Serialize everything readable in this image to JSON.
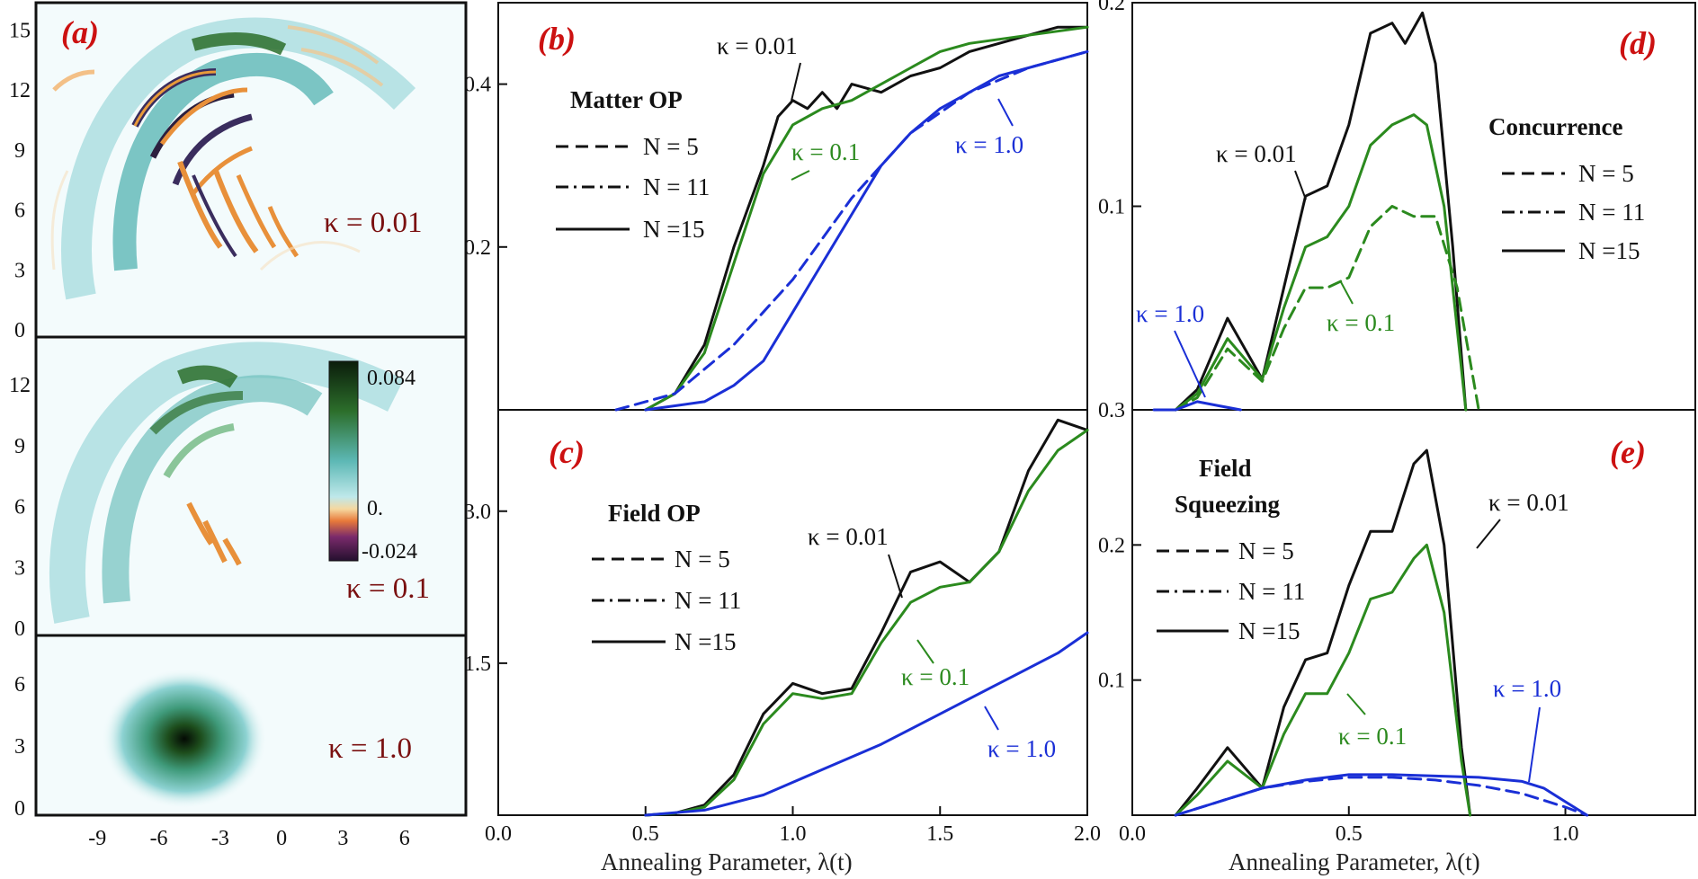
{
  "chart_data": [
    {
      "panel": "(a)",
      "type": "heatmap",
      "xlabel": "",
      "x_ticks": [
        "-9",
        "-6",
        "-3",
        "0",
        "3",
        "6"
      ],
      "colorbar": {
        "max": "0.084",
        "mid": "0.",
        "min": "-0.024"
      },
      "subpanels": [
        {
          "label": "κ = 0.01",
          "y_ticks": [
            "0",
            "3",
            "6",
            "9",
            "12",
            "15"
          ]
        },
        {
          "label": "κ = 0.1",
          "y_ticks": [
            "0",
            "3",
            "6",
            "9",
            "12"
          ]
        },
        {
          "label": "κ = 1.0",
          "y_ticks": [
            "0",
            "3",
            "6"
          ]
        }
      ]
    },
    {
      "panel": "(b)",
      "type": "line",
      "title": "Matter OP",
      "xlim": [
        0.0,
        2.0
      ],
      "ylim": [
        0.0,
        0.5
      ],
      "y_ticks": [
        "0.2",
        "0.4"
      ],
      "legend": [
        "N = 5",
        "N = 11",
        "N =15"
      ],
      "annotations": [
        "κ = 0.01",
        "κ = 0.1",
        "κ = 1.0"
      ],
      "series": [
        {
          "kappa": "0.01",
          "N": 15,
          "style": "solid",
          "color": "#111111",
          "x": [
            0.5,
            0.6,
            0.7,
            0.8,
            0.9,
            0.95,
            1.0,
            1.05,
            1.1,
            1.15,
            1.2,
            1.3,
            1.4,
            1.5,
            1.6,
            1.7,
            1.8,
            1.9,
            2.0
          ],
          "y": [
            0.0,
            0.02,
            0.08,
            0.2,
            0.3,
            0.36,
            0.38,
            0.37,
            0.39,
            0.37,
            0.4,
            0.39,
            0.41,
            0.42,
            0.44,
            0.45,
            0.46,
            0.47,
            0.47
          ]
        },
        {
          "kappa": "0.1",
          "N": 15,
          "style": "solid",
          "color": "#2b8a1e",
          "x": [
            0.5,
            0.6,
            0.7,
            0.8,
            0.9,
            1.0,
            1.1,
            1.2,
            1.3,
            1.4,
            1.5,
            1.6,
            1.8,
            2.0
          ],
          "y": [
            0.0,
            0.02,
            0.07,
            0.18,
            0.29,
            0.35,
            0.37,
            0.38,
            0.4,
            0.42,
            0.44,
            0.45,
            0.46,
            0.47
          ]
        },
        {
          "kappa": "1.0",
          "N": 15,
          "style": "solid",
          "color": "#1a2fd6",
          "x": [
            0.5,
            0.6,
            0.7,
            0.8,
            0.9,
            1.0,
            1.1,
            1.2,
            1.3,
            1.4,
            1.5,
            1.6,
            1.7,
            1.8,
            1.9,
            2.0
          ],
          "y": [
            0.0,
            0.005,
            0.01,
            0.03,
            0.06,
            0.12,
            0.18,
            0.24,
            0.3,
            0.34,
            0.37,
            0.39,
            0.41,
            0.42,
            0.43,
            0.44
          ]
        },
        {
          "kappa": "1.0",
          "N": 5,
          "style": "dashed",
          "color": "#1a2fd6",
          "x": [
            0.4,
            0.6,
            0.8,
            1.0,
            1.2,
            1.4,
            1.6,
            1.8,
            2.0
          ],
          "y": [
            0.0,
            0.02,
            0.08,
            0.16,
            0.26,
            0.34,
            0.39,
            0.42,
            0.44
          ]
        }
      ]
    },
    {
      "panel": "(c)",
      "type": "line",
      "title": "Field OP",
      "xlim": [
        0.0,
        2.0
      ],
      "ylim": [
        0.0,
        4.0
      ],
      "x_ticks": [
        "0.0",
        "0.5",
        "1.0",
        "1.5",
        "2.0"
      ],
      "y_ticks": [
        "1.5",
        "3.0"
      ],
      "xlabel": "Annealing Parameter, λ(t)",
      "legend": [
        "N = 5",
        "N = 11",
        "N =15"
      ],
      "annotations": [
        "κ = 0.01",
        "κ = 0.1",
        "κ = 1.0"
      ],
      "series": [
        {
          "kappa": "0.01",
          "N": 15,
          "style": "solid",
          "color": "#111111",
          "x": [
            0.5,
            0.6,
            0.7,
            0.8,
            0.9,
            1.0,
            1.1,
            1.2,
            1.3,
            1.4,
            1.5,
            1.6,
            1.7,
            1.8,
            1.9,
            2.0
          ],
          "y": [
            0.0,
            0.02,
            0.1,
            0.4,
            1.0,
            1.3,
            1.2,
            1.25,
            1.8,
            2.4,
            2.5,
            2.3,
            2.6,
            3.4,
            3.9,
            3.8
          ]
        },
        {
          "kappa": "0.1",
          "N": 15,
          "style": "solid",
          "color": "#2b8a1e",
          "x": [
            0.5,
            0.6,
            0.7,
            0.8,
            0.9,
            1.0,
            1.1,
            1.2,
            1.3,
            1.4,
            1.5,
            1.6,
            1.7,
            1.8,
            1.9,
            2.0
          ],
          "y": [
            0.0,
            0.02,
            0.08,
            0.35,
            0.9,
            1.2,
            1.15,
            1.2,
            1.7,
            2.1,
            2.25,
            2.3,
            2.6,
            3.2,
            3.6,
            3.8
          ]
        },
        {
          "kappa": "1.0",
          "N": 15,
          "style": "solid",
          "color": "#1a2fd6",
          "x": [
            0.5,
            0.7,
            0.9,
            1.1,
            1.3,
            1.5,
            1.7,
            1.9,
            2.0
          ],
          "y": [
            0.0,
            0.05,
            0.2,
            0.45,
            0.7,
            1.0,
            1.3,
            1.6,
            1.8
          ]
        }
      ]
    },
    {
      "panel": "(d)",
      "type": "line",
      "title": "Concurrence",
      "xlim": [
        0.0,
        1.3
      ],
      "ylim": [
        0.0,
        0.2
      ],
      "y_ticks": [
        "0.1",
        "0.2"
      ],
      "legend": [
        "N = 5",
        "N = 11",
        "N =15"
      ],
      "annotations": [
        "κ = 0.01",
        "κ = 0.1",
        "κ = 1.0"
      ],
      "series": [
        {
          "kappa": "0.01",
          "N": 15,
          "style": "solid",
          "color": "#111111",
          "x": [
            0.1,
            0.15,
            0.22,
            0.3,
            0.35,
            0.4,
            0.45,
            0.5,
            0.55,
            0.6,
            0.63,
            0.67,
            0.7,
            0.74,
            0.77
          ],
          "y": [
            0.0,
            0.01,
            0.045,
            0.015,
            0.06,
            0.105,
            0.11,
            0.14,
            0.185,
            0.19,
            0.18,
            0.195,
            0.17,
            0.08,
            0.0
          ]
        },
        {
          "kappa": "0.1",
          "N": 15,
          "style": "solid",
          "color": "#2b8a1e",
          "x": [
            0.1,
            0.15,
            0.22,
            0.3,
            0.35,
            0.4,
            0.45,
            0.5,
            0.55,
            0.6,
            0.65,
            0.68,
            0.72,
            0.77
          ],
          "y": [
            0.0,
            0.008,
            0.035,
            0.015,
            0.05,
            0.08,
            0.085,
            0.1,
            0.13,
            0.14,
            0.145,
            0.14,
            0.1,
            0.0
          ]
        },
        {
          "kappa": "0.1",
          "N": 5,
          "style": "dashed",
          "color": "#2b8a1e",
          "x": [
            0.1,
            0.15,
            0.22,
            0.3,
            0.35,
            0.4,
            0.45,
            0.5,
            0.55,
            0.6,
            0.65,
            0.7,
            0.75,
            0.8
          ],
          "y": [
            0.0,
            0.006,
            0.03,
            0.014,
            0.04,
            0.06,
            0.06,
            0.065,
            0.09,
            0.1,
            0.095,
            0.095,
            0.06,
            0.0
          ]
        },
        {
          "kappa": "1.0",
          "N": 15,
          "style": "solid",
          "color": "#1a2fd6",
          "x": [
            0.05,
            0.1,
            0.15,
            0.2,
            0.25
          ],
          "y": [
            0.0,
            0.0,
            0.004,
            0.002,
            0.0
          ]
        }
      ]
    },
    {
      "panel": "(e)",
      "type": "line",
      "title": "Field Squeezing",
      "xlim": [
        0.0,
        1.3
      ],
      "ylim": [
        0.0,
        0.3
      ],
      "x_ticks": [
        "0.0",
        "0.5",
        "1.0"
      ],
      "y_ticks": [
        "0.1",
        "0.2",
        "0.3"
      ],
      "xlabel": "Annealing Parameter, λ(t)",
      "legend": [
        "N = 5",
        "N = 11",
        "N =15"
      ],
      "annotations": [
        "κ = 0.01",
        "κ = 0.1",
        "κ = 1.0"
      ],
      "series": [
        {
          "kappa": "0.01",
          "N": 15,
          "style": "solid",
          "color": "#111111",
          "x": [
            0.1,
            0.15,
            0.22,
            0.3,
            0.35,
            0.4,
            0.45,
            0.5,
            0.55,
            0.6,
            0.65,
            0.68,
            0.72,
            0.76,
            0.78
          ],
          "y": [
            0.0,
            0.02,
            0.05,
            0.02,
            0.08,
            0.115,
            0.12,
            0.17,
            0.21,
            0.21,
            0.26,
            0.27,
            0.2,
            0.05,
            0.0
          ]
        },
        {
          "kappa": "0.1",
          "N": 15,
          "style": "solid",
          "color": "#2b8a1e",
          "x": [
            0.1,
            0.15,
            0.22,
            0.3,
            0.35,
            0.4,
            0.45,
            0.5,
            0.55,
            0.6,
            0.65,
            0.68,
            0.72,
            0.76,
            0.78
          ],
          "y": [
            0.0,
            0.015,
            0.04,
            0.02,
            0.06,
            0.09,
            0.09,
            0.12,
            0.16,
            0.165,
            0.19,
            0.2,
            0.15,
            0.04,
            0.0
          ]
        },
        {
          "kappa": "1.0",
          "N": 15,
          "style": "solid",
          "color": "#1a2fd6",
          "x": [
            0.1,
            0.2,
            0.3,
            0.4,
            0.5,
            0.6,
            0.7,
            0.8,
            0.9,
            0.95,
            1.0,
            1.05
          ],
          "y": [
            0.0,
            0.01,
            0.02,
            0.026,
            0.03,
            0.03,
            0.029,
            0.028,
            0.025,
            0.02,
            0.01,
            0.0
          ]
        },
        {
          "kappa": "1.0",
          "N": 5,
          "style": "dashed",
          "color": "#1a2fd6",
          "x": [
            0.1,
            0.2,
            0.3,
            0.4,
            0.5,
            0.6,
            0.7,
            0.8,
            0.9,
            1.0,
            1.05
          ],
          "y": [
            0.0,
            0.01,
            0.02,
            0.025,
            0.028,
            0.028,
            0.026,
            0.022,
            0.016,
            0.006,
            0.0
          ]
        }
      ]
    }
  ]
}
